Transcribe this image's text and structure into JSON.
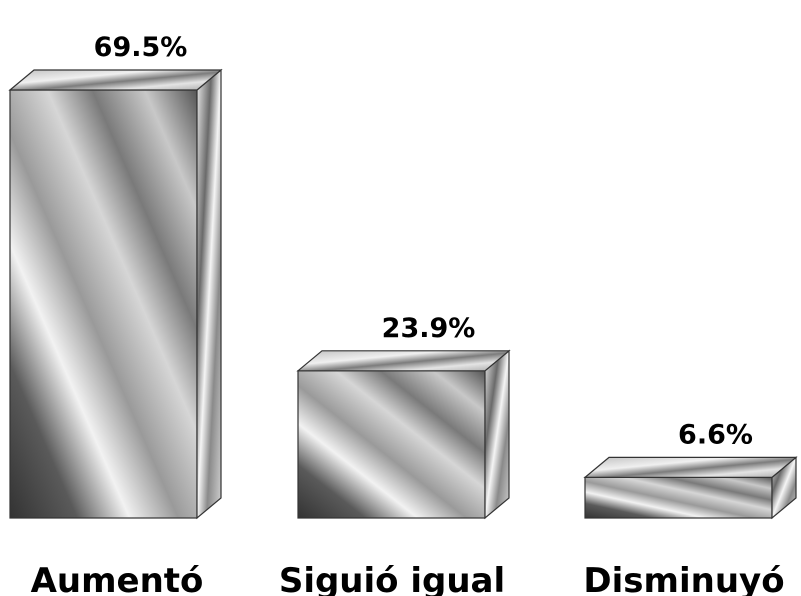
{
  "chart_data": {
    "type": "bar",
    "style": "3d",
    "categories": [
      "Aumentó",
      "Siguió igual",
      "Disminuyó"
    ],
    "values": [
      69.5,
      23.9,
      6.6
    ],
    "value_labels": [
      "69.5%",
      "23.9%",
      "6.6%"
    ],
    "title": "",
    "xlabel": "",
    "ylabel": "",
    "ylim": [
      0,
      69.5
    ],
    "grid": false,
    "legend": "none",
    "colors": {
      "face_light": "#f4f4f4",
      "face_mid": "#b8b8b8",
      "face_dark": "#2e2e2e",
      "outline": "#333333"
    }
  }
}
